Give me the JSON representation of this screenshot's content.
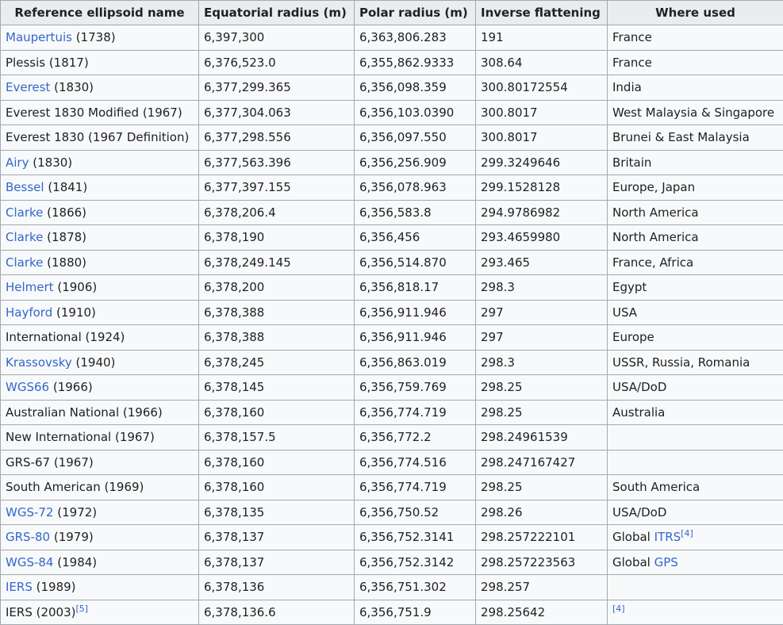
{
  "headers": [
    "Reference ellipsoid name",
    "Equatorial radius (m)",
    "Polar radius (m)",
    "Inverse flattening",
    "Where used"
  ],
  "rows": [
    {
      "name": "Maupertuis",
      "name_link": true,
      "year": " (1738)",
      "eq": "6,397,300",
      "polar": "6,363,806.283",
      "inv": "191",
      "where": "France"
    },
    {
      "name": "Plessis (1817)",
      "name_link": false,
      "year": "",
      "eq": "6,376,523.0",
      "polar": "6,355,862.9333",
      "inv": "308.64",
      "where": "France"
    },
    {
      "name": "Everest",
      "name_link": true,
      "year": " (1830)",
      "eq": "6,377,299.365",
      "polar": "6,356,098.359",
      "inv": "300.80172554",
      "where": "India"
    },
    {
      "name": "Everest 1830 Modified (1967)",
      "name_link": false,
      "year": "",
      "eq": "6,377,304.063",
      "polar": "6,356,103.0390",
      "inv": "300.8017",
      "where": "West Malaysia & Singapore"
    },
    {
      "name": "Everest 1830 (1967 Definition)",
      "name_link": false,
      "year": "",
      "eq": "6,377,298.556",
      "polar": "6,356,097.550",
      "inv": "300.8017",
      "where": "Brunei & East Malaysia"
    },
    {
      "name": "Airy",
      "name_link": true,
      "year": " (1830)",
      "eq": "6,377,563.396",
      "polar": "6,356,256.909",
      "inv": "299.3249646",
      "where": "Britain"
    },
    {
      "name": "Bessel",
      "name_link": true,
      "year": " (1841)",
      "eq": "6,377,397.155",
      "polar": "6,356,078.963",
      "inv": "299.1528128",
      "where": "Europe, Japan"
    },
    {
      "name": "Clarke",
      "name_link": true,
      "year": " (1866)",
      "eq": "6,378,206.4",
      "polar": "6,356,583.8",
      "inv": "294.9786982",
      "where": "North America"
    },
    {
      "name": "Clarke",
      "name_link": true,
      "year": " (1878)",
      "eq": "6,378,190",
      "polar": "6,356,456",
      "inv": "293.4659980",
      "where": "North America"
    },
    {
      "name": "Clarke",
      "name_link": true,
      "year": " (1880)",
      "eq": "6,378,249.145",
      "polar": "6,356,514.870",
      "inv": "293.465",
      "where": "France, Africa"
    },
    {
      "name": "Helmert",
      "name_link": true,
      "year": " (1906)",
      "eq": "6,378,200",
      "polar": "6,356,818.17",
      "inv": "298.3",
      "where": "Egypt"
    },
    {
      "name": "Hayford",
      "name_link": true,
      "year": " (1910)",
      "eq": "6,378,388",
      "polar": "6,356,911.946",
      "inv": "297",
      "where": "USA"
    },
    {
      "name": "International (1924)",
      "name_link": false,
      "year": "",
      "eq": "6,378,388",
      "polar": "6,356,911.946",
      "inv": "297",
      "where": "Europe"
    },
    {
      "name": "Krassovsky",
      "name_link": true,
      "year": " (1940)",
      "eq": "6,378,245",
      "polar": "6,356,863.019",
      "inv": "298.3",
      "where": "USSR, Russia, Romania"
    },
    {
      "name": "WGS66",
      "name_link": true,
      "year": " (1966)",
      "eq": "6,378,145",
      "polar": "6,356,759.769",
      "inv": "298.25",
      "where": "USA/DoD"
    },
    {
      "name": "Australian National (1966)",
      "name_link": false,
      "year": "",
      "eq": "6,378,160",
      "polar": "6,356,774.719",
      "inv": "298.25",
      "where": "Australia"
    },
    {
      "name": "New International (1967)",
      "name_link": false,
      "year": "",
      "eq": "6,378,157.5",
      "polar": "6,356,772.2",
      "inv": "298.24961539",
      "where": ""
    },
    {
      "name": "GRS-67 (1967)",
      "name_link": false,
      "year": "",
      "eq": "6,378,160",
      "polar": "6,356,774.516",
      "inv": "298.247167427",
      "where": ""
    },
    {
      "name": "South American (1969)",
      "name_link": false,
      "year": "",
      "eq": "6,378,160",
      "polar": "6,356,774.719",
      "inv": "298.25",
      "where": "South America"
    },
    {
      "name": "WGS-72",
      "name_link": true,
      "year": " (1972)",
      "eq": "6,378,135",
      "polar": "6,356,750.52",
      "inv": "298.26",
      "where": "USA/DoD"
    },
    {
      "name": "GRS-80",
      "name_link": true,
      "year": " (1979)",
      "eq": "6,378,137",
      "polar": "6,356,752.3141",
      "inv": "298.257222101",
      "where": "Global ",
      "where_link": "ITRS",
      "where_sup": "[4]"
    },
    {
      "name": "WGS-84",
      "name_link": true,
      "year": " (1984)",
      "eq": "6,378,137",
      "polar": "6,356,752.3142",
      "inv": "298.257223563",
      "where": "Global ",
      "where_link": "GPS"
    },
    {
      "name": "IERS",
      "name_link": true,
      "year": " (1989)",
      "eq": "6,378,136",
      "polar": "6,356,751.302",
      "inv": "298.257",
      "where": ""
    },
    {
      "name": "IERS (2003)",
      "name_link": false,
      "year": "",
      "name_sup": "[5]",
      "eq": "6,378,136.6",
      "polar": "6,356,751.9",
      "inv": "298.25642",
      "where": "",
      "where_sup": "[4]"
    }
  ],
  "colors": {
    "link": "#3366cc",
    "header_bg": "#eaecf0",
    "cell_bg": "#f8f9fa",
    "border": "#a2a9b1"
  }
}
